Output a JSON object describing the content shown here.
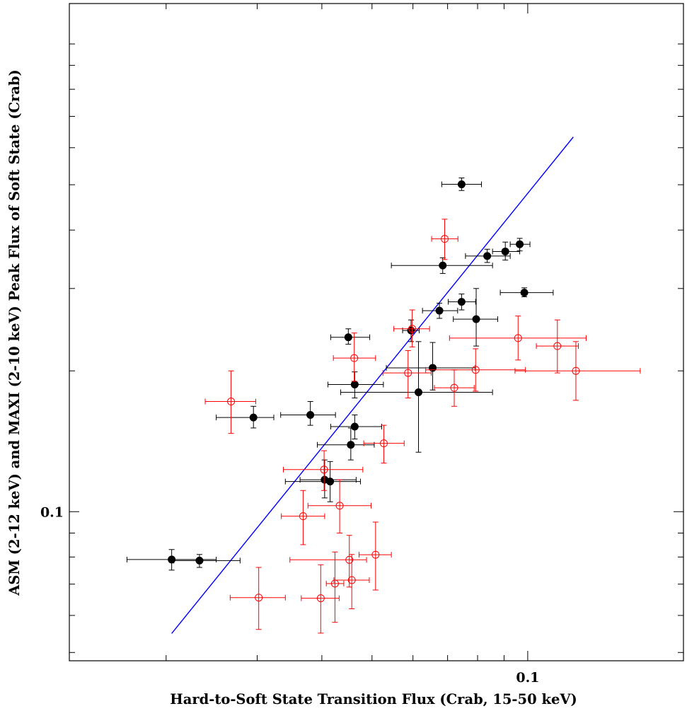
{
  "chart_data": {
    "type": "scatter",
    "title": "",
    "xlabel": "Hard-to-Soft State Transition Flux (Crab, 15-50 keV)",
    "ylabel": "ASM (2-12 keV) and MAXI (2-10 keV) Peak Flux of Soft State (Crab)",
    "xscale": "log",
    "yscale": "log",
    "xlim": [
      0.013,
      0.2
    ],
    "ylim": [
      0.048,
      1.22
    ],
    "x_tick_labels": [
      {
        "value": 0.1,
        "label": "0.1"
      }
    ],
    "y_tick_labels": [
      {
        "value": 0.1,
        "label": "0.1"
      }
    ],
    "series": [
      {
        "color": "#000000",
        "marker": "filled-circle",
        "points": [
          {
            "x": 0.0205,
            "y": 0.079,
            "xerr": [
              0.0168,
              0.025
            ],
            "yerr": [
              0.075,
              0.083
            ]
          },
          {
            "x": 0.0232,
            "y": 0.0786,
            "xerr": [
              0.0207,
              0.0278
            ],
            "yerr": [
              0.076,
              0.081
            ]
          },
          {
            "x": 0.0295,
            "y": 0.159,
            "xerr": [
              0.025,
              0.0323
            ],
            "yerr": [
              0.151,
              0.168
            ]
          },
          {
            "x": 0.038,
            "y": 0.161,
            "xerr": [
              0.0333,
              0.0425
            ],
            "yerr": [
              0.153,
              0.172
            ]
          },
          {
            "x": 0.0405,
            "y": 0.117,
            "xerr": [
              0.0363,
              0.0466
            ],
            "yerr": [
              0.107,
              0.129
            ]
          },
          {
            "x": 0.0415,
            "y": 0.116,
            "xerr": [
              0.034,
              0.0475
            ],
            "yerr": [
              0.105,
              0.128
            ]
          },
          {
            "x": 0.0455,
            "y": 0.139,
            "xerr": [
              0.0392,
              0.0505
            ],
            "yerr": [
              0.129,
              0.151
            ]
          },
          {
            "x": 0.0463,
            "y": 0.152,
            "xerr": [
              0.0416,
              0.0522
            ],
            "yerr": [
              0.143,
              0.161
            ]
          },
          {
            "x": 0.0463,
            "y": 0.187,
            "xerr": [
              0.0411,
              0.0526
            ],
            "yerr": [
              0.175,
              0.199
            ]
          },
          {
            "x": 0.045,
            "y": 0.236,
            "xerr": [
              0.0416,
              0.0495
            ],
            "yerr": [
              0.228,
              0.246
            ]
          },
          {
            "x": 0.0595,
            "y": 0.244,
            "xerr": [
              0.0573,
              0.0617
            ],
            "yerr": [
              0.231,
              0.257
            ]
          },
          {
            "x": 0.0615,
            "y": 0.18,
            "xerr": [
              0.0435,
              0.0855
            ],
            "yerr": [
              0.134,
              0.231
            ]
          },
          {
            "x": 0.0655,
            "y": 0.203,
            "xerr": [
              0.0533,
              0.0792
            ],
            "yerr": [
              0.182,
              0.23
            ]
          },
          {
            "x": 0.0675,
            "y": 0.269,
            "xerr": [
              0.0626,
              0.0732
            ],
            "yerr": [
              0.259,
              0.279
            ]
          },
          {
            "x": 0.0685,
            "y": 0.336,
            "xerr": [
              0.0545,
              0.0855
            ],
            "yerr": [
              0.323,
              0.349
            ]
          },
          {
            "x": 0.0745,
            "y": 0.281,
            "xerr": [
              0.0702,
              0.0793
            ],
            "yerr": [
              0.27,
              0.292
            ]
          },
          {
            "x": 0.0745,
            "y": 0.501,
            "xerr": [
              0.0682,
              0.0814
            ],
            "yerr": [
              0.486,
              0.517
            ]
          },
          {
            "x": 0.0795,
            "y": 0.258,
            "xerr": [
              0.0718,
              0.0875
            ],
            "yerr": [
              0.226,
              0.3
            ]
          },
          {
            "x": 0.0835,
            "y": 0.352,
            "xerr": [
              0.0758,
              0.0925
            ],
            "yerr": [
              0.341,
              0.364
            ]
          },
          {
            "x": 0.0905,
            "y": 0.36,
            "xerr": [
              0.0855,
              0.0965
            ],
            "yerr": [
              0.345,
              0.377
            ]
          },
          {
            "x": 0.0965,
            "y": 0.373,
            "xerr": [
              0.0925,
              0.101
            ],
            "yerr": [
              0.361,
              0.384
            ]
          },
          {
            "x": 0.0985,
            "y": 0.294,
            "xerr": [
              0.0885,
              0.112
            ],
            "yerr": [
              0.288,
              0.301
            ]
          }
        ]
      },
      {
        "color": "#ff0000",
        "marker": "open-circle",
        "points": [
          {
            "x": 0.0267,
            "y": 0.172,
            "xerr": [
              0.0238,
              0.0298
            ],
            "yerr": [
              0.147,
              0.2
            ]
          },
          {
            "x": 0.0302,
            "y": 0.0655,
            "xerr": [
              0.0266,
              0.034
            ],
            "yerr": [
              0.056,
              0.076
            ]
          },
          {
            "x": 0.0368,
            "y": 0.0978,
            "xerr": [
              0.0334,
              0.0405
            ],
            "yerr": [
              0.085,
              0.111
            ]
          },
          {
            "x": 0.0398,
            "y": 0.0653,
            "xerr": [
              0.0365,
              0.0432
            ],
            "yerr": [
              0.055,
              0.077
            ]
          },
          {
            "x": 0.0404,
            "y": 0.123,
            "xerr": [
              0.0337,
              0.048
            ],
            "yerr": [
              0.111,
              0.135
            ]
          },
          {
            "x": 0.0424,
            "y": 0.0702,
            "xerr": [
              0.0408,
              0.0441
            ],
            "yerr": [
              0.058,
              0.082
            ]
          },
          {
            "x": 0.0433,
            "y": 0.103,
            "xerr": [
              0.0376,
              0.0498
            ],
            "yerr": [
              0.09,
              0.117
            ]
          },
          {
            "x": 0.0452,
            "y": 0.0789,
            "xerr": [
              0.0347,
              0.0488
            ],
            "yerr": [
              0.069,
              0.089
            ]
          },
          {
            "x": 0.0457,
            "y": 0.0714,
            "xerr": [
              0.0422,
              0.0494
            ],
            "yerr": [
              0.062,
              0.081
            ]
          },
          {
            "x": 0.0462,
            "y": 0.213,
            "xerr": [
              0.0421,
              0.0508
            ],
            "yerr": [
              0.19,
              0.241
            ]
          },
          {
            "x": 0.0508,
            "y": 0.0809,
            "xerr": [
              0.0472,
              0.0545
            ],
            "yerr": [
              0.068,
              0.095
            ]
          },
          {
            "x": 0.0527,
            "y": 0.14,
            "xerr": [
              0.0482,
              0.0577
            ],
            "yerr": [
              0.127,
              0.153
            ]
          },
          {
            "x": 0.0587,
            "y": 0.198,
            "xerr": [
              0.0525,
              0.0651
            ],
            "yerr": [
              0.175,
              0.221
            ]
          },
          {
            "x": 0.0598,
            "y": 0.246,
            "xerr": [
              0.0551,
              0.0646
            ],
            "yerr": [
              0.225,
              0.27
            ]
          },
          {
            "x": 0.0691,
            "y": 0.383,
            "xerr": [
              0.0652,
              0.0733
            ],
            "yerr": [
              0.346,
              0.422
            ]
          },
          {
            "x": 0.0721,
            "y": 0.184,
            "xerr": [
              0.066,
              0.0788
            ],
            "yerr": [
              0.168,
              0.201
            ]
          },
          {
            "x": 0.0793,
            "y": 0.201,
            "xerr": [
              0.0635,
              0.099
            ],
            "yerr": [
              0.181,
              0.223
            ]
          },
          {
            "x": 0.0958,
            "y": 0.235,
            "xerr": [
              0.0706,
              0.1297
            ],
            "yerr": [
              0.211,
              0.262
            ]
          },
          {
            "x": 0.1141,
            "y": 0.226,
            "xerr": [
              0.1039,
              0.1253
            ],
            "yerr": [
              0.198,
              0.257
            ]
          },
          {
            "x": 0.1239,
            "y": 0.2,
            "xerr": [
              0.0945,
              0.165
            ],
            "yerr": [
              0.173,
              0.231
            ]
          }
        ]
      },
      {
        "color": "#0000ff",
        "type": "line",
        "x": [
          0.0205,
          0.1225
        ],
        "y": [
          0.0549,
          0.6325
        ]
      }
    ]
  }
}
